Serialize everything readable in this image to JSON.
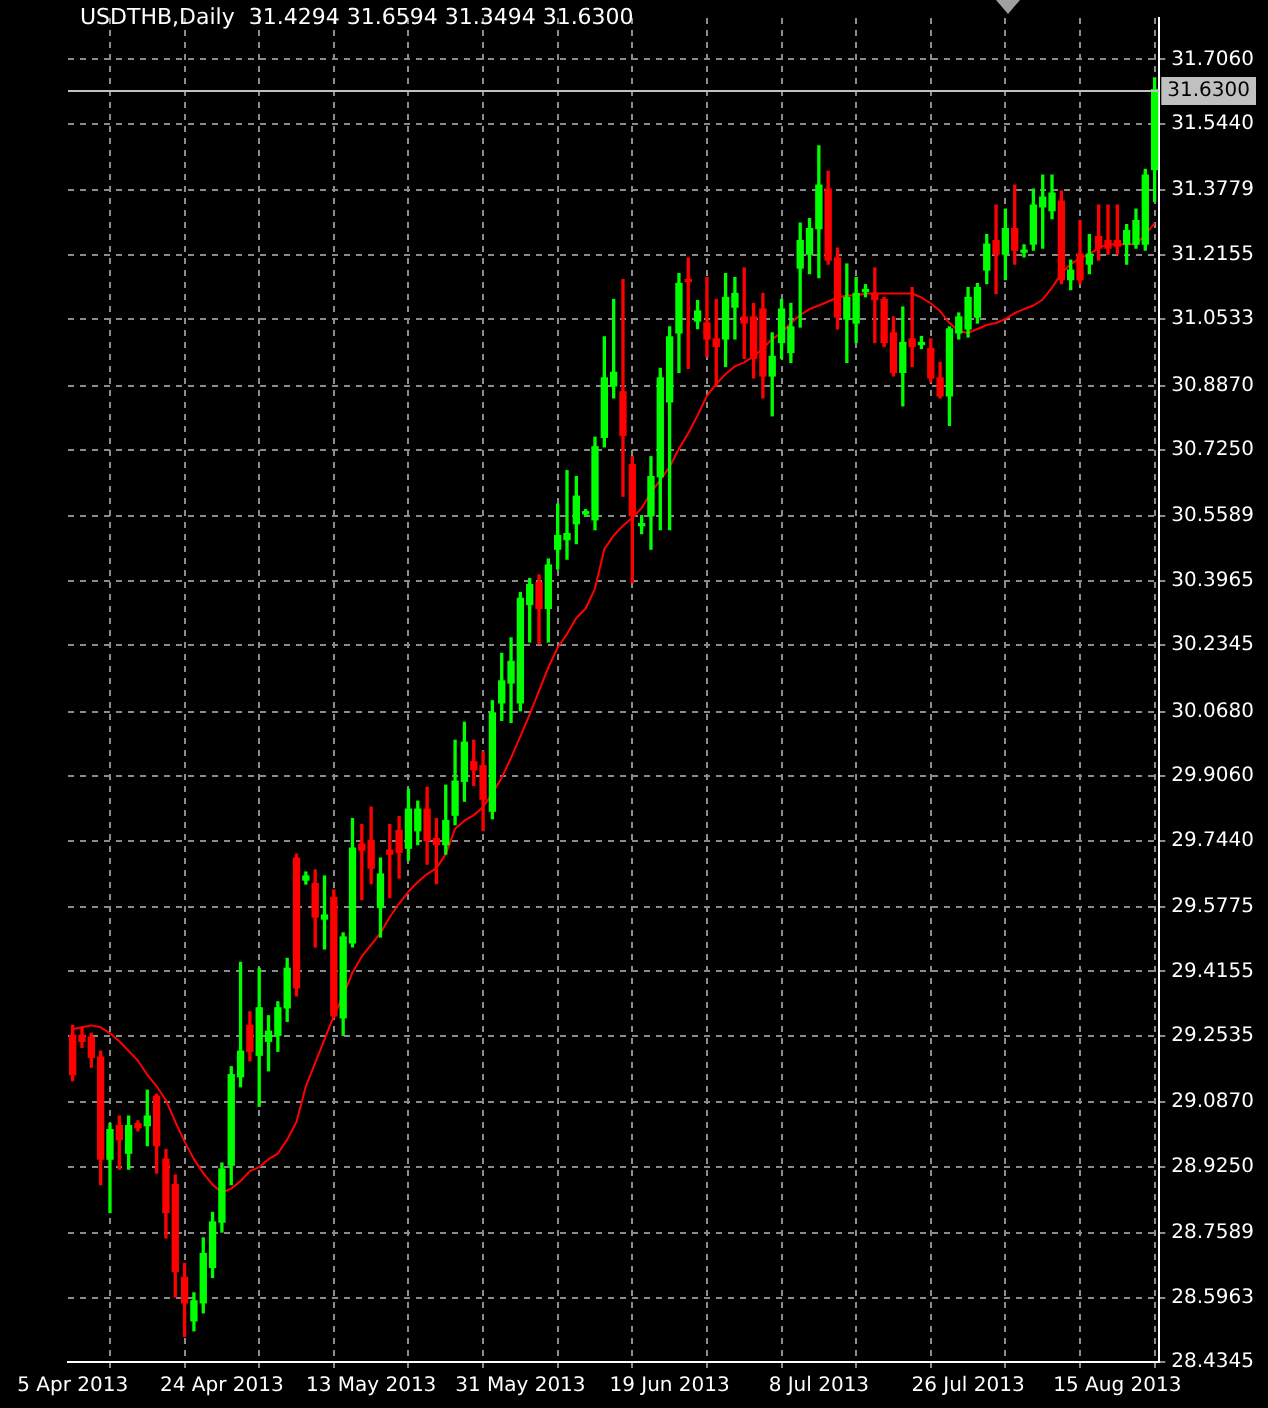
{
  "chart_data": {
    "type": "candlestick",
    "title": "USDTHB,Daily  31.4294 31.6594 31.3494 31.6300",
    "categories": [
      "5 Apr 2013",
      null,
      null,
      null,
      null,
      null,
      null,
      null,
      null,
      null,
      null,
      null,
      null,
      null,
      null,
      null,
      "24 Apr 2013",
      null,
      null,
      null,
      null,
      null,
      null,
      null,
      null,
      null,
      null,
      null,
      null,
      null,
      null,
      null,
      "13 May 2013",
      null,
      null,
      null,
      null,
      null,
      null,
      null,
      null,
      null,
      null,
      null,
      null,
      null,
      null,
      null,
      "31 May 2013",
      null,
      null,
      null,
      null,
      null,
      null,
      null,
      null,
      null,
      null,
      null,
      null,
      null,
      null,
      null,
      "19 Jun 2013",
      null,
      null,
      null,
      null,
      null,
      null,
      null,
      null,
      null,
      null,
      null,
      null,
      null,
      null,
      null,
      "8 Jul 2013",
      null,
      null,
      null,
      null,
      null,
      null,
      null,
      null,
      null,
      null,
      null,
      null,
      null,
      null,
      null,
      "26 Jul 2013",
      null,
      null,
      null,
      null,
      null,
      null,
      null,
      null,
      null,
      null,
      null,
      null,
      null,
      null,
      null,
      "15 Aug 2013",
      null,
      null,
      null,
      null
    ],
    "ohlc": [
      [
        29.255,
        29.28,
        29.141,
        29.156
      ],
      [
        29.255,
        29.275,
        29.225,
        29.24
      ],
      [
        29.25,
        29.26,
        29.175,
        29.2
      ],
      [
        29.2,
        29.215,
        28.88,
        28.944
      ],
      [
        28.944,
        29.033,
        28.81,
        29.018
      ],
      [
        29.028,
        29.052,
        28.919,
        28.993
      ],
      [
        28.959,
        29.052,
        28.919,
        29.028
      ],
      [
        29.033,
        29.04,
        29.015,
        29.023
      ],
      [
        29.028,
        29.117,
        28.978,
        29.052
      ],
      [
        29.102,
        29.107,
        28.909,
        28.978
      ],
      [
        28.944,
        28.968,
        28.746,
        28.81
      ],
      [
        28.88,
        28.904,
        28.598,
        28.662
      ],
      [
        28.647,
        28.682,
        28.499,
        28.583
      ],
      [
        28.538,
        28.608,
        28.513,
        28.588
      ],
      [
        28.583,
        28.746,
        28.558,
        28.707
      ],
      [
        28.672,
        28.81,
        28.647,
        28.786
      ],
      [
        28.786,
        28.934,
        28.761,
        28.919
      ],
      [
        28.929,
        29.176,
        28.88,
        29.156
      ],
      [
        29.151,
        29.438,
        29.126,
        29.215
      ],
      [
        29.28,
        29.314,
        29.191,
        29.215
      ],
      [
        29.205,
        29.423,
        29.077,
        29.324
      ],
      [
        29.24,
        29.304,
        29.166,
        29.265
      ],
      [
        29.255,
        29.339,
        29.215,
        29.324
      ],
      [
        29.324,
        29.448,
        29.29,
        29.423
      ],
      [
        29.7,
        29.71,
        29.354,
        29.374
      ],
      [
        29.645,
        29.665,
        29.635,
        29.655
      ],
      [
        29.636,
        29.67,
        29.477,
        29.552
      ],
      [
        29.547,
        29.655,
        29.472,
        29.557
      ],
      [
        29.601,
        29.62,
        29.299,
        29.304
      ],
      [
        29.299,
        29.512,
        29.255,
        29.502
      ],
      [
        29.487,
        29.799,
        29.477,
        29.725
      ],
      [
        29.735,
        29.784,
        29.596,
        29.72
      ],
      [
        29.744,
        29.828,
        29.636,
        29.675
      ],
      [
        29.576,
        29.7,
        29.502,
        29.66
      ],
      [
        29.72,
        29.784,
        29.601,
        29.71
      ],
      [
        29.769,
        29.804,
        29.65,
        29.715
      ],
      [
        29.725,
        29.873,
        29.695,
        29.823
      ],
      [
        29.769,
        29.843,
        29.734,
        29.823
      ],
      [
        29.823,
        29.878,
        29.685,
        29.744
      ],
      [
        29.749,
        29.799,
        29.636,
        29.734
      ],
      [
        29.734,
        29.883,
        29.71,
        29.794
      ],
      [
        29.808,
        29.996,
        29.784,
        29.893
      ],
      [
        29.893,
        30.041,
        29.843,
        29.991
      ],
      [
        29.942,
        29.996,
        29.883,
        29.922
      ],
      [
        29.932,
        29.967,
        29.769,
        29.848
      ],
      [
        29.818,
        30.095,
        29.799,
        30.065
      ],
      [
        30.09,
        30.214,
        30.046,
        30.145
      ],
      [
        30.14,
        30.253,
        30.041,
        30.194
      ],
      [
        30.09,
        30.367,
        30.07,
        30.352
      ],
      [
        30.337,
        30.402,
        30.243,
        30.387
      ],
      [
        30.392,
        30.411,
        30.238,
        30.327
      ],
      [
        30.327,
        30.451,
        30.243,
        30.436
      ],
      [
        30.476,
        30.589,
        30.426,
        30.51
      ],
      [
        30.5,
        30.673,
        30.451,
        30.515
      ],
      [
        30.54,
        30.658,
        30.49,
        30.609
      ],
      [
        30.565,
        30.575,
        30.56,
        30.57
      ],
      [
        30.55,
        30.757,
        30.525,
        30.733
      ],
      [
        30.757,
        31.009,
        30.733,
        30.906
      ],
      [
        30.886,
        31.103,
        30.856,
        30.92
      ],
      [
        30.871,
        31.153,
        30.609,
        30.762
      ],
      [
        30.688,
        30.708,
        30.392,
        30.56
      ],
      [
        30.535,
        30.56,
        30.515,
        30.54
      ],
      [
        30.56,
        30.708,
        30.476,
        30.658
      ],
      [
        30.658,
        30.93,
        30.525,
        30.906
      ],
      [
        30.846,
        31.034,
        30.525,
        31.009
      ],
      [
        31.019,
        31.168,
        30.92,
        31.143
      ],
      [
        31.153,
        31.207,
        30.93,
        31.148
      ],
      [
        31.049,
        31.1,
        31.03,
        31.074
      ],
      [
        31.044,
        31.158,
        30.96,
        31.004
      ],
      [
        31.004,
        31.103,
        30.886,
        30.985
      ],
      [
        31.004,
        31.168,
        30.935,
        31.108
      ],
      [
        31.084,
        31.158,
        31.004,
        31.118
      ],
      [
        31.059,
        31.182,
        30.955,
        31.044
      ],
      [
        31.059,
        31.093,
        30.906,
        30.955
      ],
      [
        31.079,
        31.118,
        30.856,
        30.911
      ],
      [
        30.911,
        31.019,
        30.811,
        30.96
      ],
      [
        30.995,
        31.103,
        30.955,
        31.079
      ],
      [
        30.97,
        31.093,
        30.945,
        31.034
      ],
      [
        31.182,
        31.295,
        31.034,
        31.251
      ],
      [
        31.217,
        31.306,
        31.168,
        31.281
      ],
      [
        31.281,
        31.489,
        31.158,
        31.39
      ],
      [
        31.38,
        31.425,
        31.192,
        31.202
      ],
      [
        31.207,
        31.232,
        31.029,
        31.059
      ],
      [
        31.054,
        31.192,
        30.945,
        31.108
      ],
      [
        31.044,
        31.158,
        30.995,
        31.118
      ],
      [
        31.123,
        31.14,
        31.11,
        31.128
      ],
      [
        31.118,
        31.182,
        30.995,
        31.103
      ],
      [
        31.103,
        31.108,
        30.985,
        30.995
      ],
      [
        31.019,
        31.059,
        30.911,
        30.92
      ],
      [
        30.92,
        31.084,
        30.836,
        30.995
      ],
      [
        31.004,
        31.133,
        30.935,
        30.985
      ],
      [
        30.99,
        31.01,
        30.98,
        30.995
      ],
      [
        30.98,
        31.004,
        30.896,
        30.906
      ],
      [
        30.906,
        30.945,
        30.856,
        30.861
      ],
      [
        30.861,
        31.034,
        30.787,
        31.029
      ],
      [
        31.019,
        31.069,
        31.004,
        31.059
      ],
      [
        31.029,
        31.133,
        31.009,
        31.108
      ],
      [
        31.059,
        31.143,
        31.044,
        31.133
      ],
      [
        31.177,
        31.266,
        31.143,
        31.242
      ],
      [
        31.251,
        31.34,
        31.118,
        31.217
      ],
      [
        31.217,
        31.33,
        31.153,
        31.281
      ],
      [
        31.281,
        31.39,
        31.192,
        31.227
      ],
      [
        31.222,
        31.24,
        31.21,
        31.227
      ],
      [
        31.242,
        31.38,
        31.227,
        31.34
      ],
      [
        31.336,
        31.415,
        31.232,
        31.36
      ],
      [
        31.326,
        31.415,
        31.306,
        31.37
      ],
      [
        31.35,
        31.375,
        31.143,
        31.153
      ],
      [
        31.153,
        31.202,
        31.128,
        31.177
      ],
      [
        31.217,
        31.301,
        31.143,
        31.153
      ],
      [
        31.192,
        31.266,
        31.168,
        31.217
      ],
      [
        31.261,
        31.34,
        31.202,
        31.232
      ],
      [
        31.251,
        31.34,
        31.217,
        31.232
      ],
      [
        31.251,
        31.34,
        31.217,
        31.237
      ],
      [
        31.242,
        31.291,
        31.192,
        31.276
      ],
      [
        31.242,
        31.33,
        31.232,
        31.301
      ],
      [
        31.242,
        31.43,
        31.227,
        31.415
      ],
      [
        31.4294,
        31.6594,
        31.3494,
        31.63
      ]
    ],
    "colors": [
      "#ff0000",
      "#ff0000",
      "#ff0000",
      "#ff0000",
      "#00ff00",
      "#ff0000",
      "#00ff00",
      "#ff0000",
      "#00ff00",
      "#ff0000",
      "#ff0000",
      "#ff0000",
      "#ff0000",
      "#00ff00",
      "#00ff00",
      "#00ff00",
      "#00ff00",
      "#00ff00",
      "#00ff00",
      "#ff0000",
      "#00ff00",
      "#00ff00",
      "#00ff00",
      "#00ff00",
      "#ff0000",
      "#00ff00",
      "#ff0000",
      "#00ff00",
      "#ff0000",
      "#00ff00",
      "#00ff00",
      "#ff0000",
      "#ff0000",
      "#00ff00",
      "#ff0000",
      "#ff0000",
      "#00ff00",
      "#00ff00",
      "#ff0000",
      "#ff0000",
      "#00ff00",
      "#00ff00",
      "#00ff00",
      "#ff0000",
      "#ff0000",
      "#00ff00",
      "#00ff00",
      "#00ff00",
      "#00ff00",
      "#00ff00",
      "#ff0000",
      "#00ff00",
      "#00ff00",
      "#00ff00",
      "#00ff00",
      "#00ff00",
      "#00ff00",
      "#00ff00",
      "#00ff00",
      "#ff0000",
      "#ff0000",
      "#00ff00",
      "#00ff00",
      "#00ff00",
      "#00ff00",
      "#00ff00",
      "#ff0000",
      "#00ff00",
      "#ff0000",
      "#ff0000",
      "#00ff00",
      "#00ff00",
      "#ff0000",
      "#ff0000",
      "#ff0000",
      "#00ff00",
      "#00ff00",
      "#00ff00",
      "#00ff00",
      "#00ff00",
      "#00ff00",
      "#ff0000",
      "#ff0000",
      "#00ff00",
      "#00ff00",
      "#00ff00",
      "#ff0000",
      "#ff0000",
      "#ff0000",
      "#00ff00",
      "#ff0000",
      "#00ff00",
      "#ff0000",
      "#ff0000",
      "#00ff00",
      "#00ff00",
      "#00ff00",
      "#00ff00",
      "#00ff00",
      "#ff0000",
      "#00ff00",
      "#ff0000",
      "#00ff00",
      "#00ff00",
      "#00ff00",
      "#00ff00",
      "#ff0000",
      "#00ff00",
      "#ff0000",
      "#00ff00",
      "#ff0000",
      "#ff0000",
      "#ff0000",
      "#00ff00",
      "#00ff00",
      "#00ff00",
      "#00ff00"
    ],
    "series": [
      {
        "type": "line",
        "color": "#ff0000",
        "values": [
          29.27,
          29.275,
          29.28,
          29.275,
          29.26,
          29.24,
          29.216,
          29.191,
          29.156,
          29.127,
          29.092,
          29.038,
          28.988,
          28.944,
          28.909,
          28.88,
          28.86,
          28.87,
          28.889,
          28.914,
          28.924,
          28.944,
          28.958,
          28.993,
          29.038,
          29.127,
          29.186,
          29.245,
          29.304,
          29.354,
          29.413,
          29.453,
          29.482,
          29.512,
          29.552,
          29.586,
          29.616,
          29.64,
          29.66,
          29.675,
          29.71,
          29.774,
          29.794,
          29.808,
          29.828,
          29.863,
          29.902,
          29.952,
          30.006,
          30.061,
          30.12,
          30.179,
          30.229,
          30.263,
          30.303,
          30.327,
          30.377,
          30.476,
          30.51,
          30.535,
          30.555,
          30.579,
          30.619,
          30.649,
          30.683,
          30.728,
          30.767,
          30.812,
          30.861,
          30.891,
          30.916,
          30.935,
          30.945,
          30.96,
          30.98,
          31.004,
          31.019,
          31.044,
          31.064,
          31.079,
          31.088,
          31.098,
          31.108,
          31.113,
          31.113,
          31.118,
          31.118,
          31.118,
          31.118,
          31.118,
          31.118,
          31.108,
          31.093,
          31.074,
          31.044,
          31.024,
          31.019,
          31.029,
          31.039,
          31.044,
          31.054,
          31.069,
          31.079,
          31.088,
          31.103,
          31.133,
          31.168,
          31.192,
          31.207,
          31.217,
          31.232,
          31.242,
          31.242,
          31.242,
          31.242,
          31.266,
          31.295
        ]
      }
    ],
    "ylim": [
      28.4345,
      31.81
    ],
    "yticks": [
      {
        "value": 28.4345,
        "label": "28.4345"
      },
      {
        "value": 28.5963,
        "label": "28.5963"
      },
      {
        "value": 28.7589,
        "label": "28.7589"
      },
      {
        "value": 28.925,
        "label": "28.9250"
      },
      {
        "value": 29.087,
        "label": "29.0870"
      },
      {
        "value": 29.2535,
        "label": "29.2535"
      },
      {
        "value": 29.4155,
        "label": "29.4155"
      },
      {
        "value": 29.5775,
        "label": "29.5775"
      },
      {
        "value": 29.744,
        "label": "29.7440"
      },
      {
        "value": 29.906,
        "label": "29.9060"
      },
      {
        "value": 30.068,
        "label": "30.0680"
      },
      {
        "value": 30.2345,
        "label": "30.2345"
      },
      {
        "value": 30.3965,
        "label": "30.3965"
      },
      {
        "value": 30.5589,
        "label": "30.5589"
      },
      {
        "value": 30.725,
        "label": "30.7250"
      },
      {
        "value": 30.887,
        "label": "30.8870"
      },
      {
        "value": 31.0533,
        "label": "31.0533"
      },
      {
        "value": 31.2155,
        "label": "31.2155"
      },
      {
        "value": 31.3779,
        "label": "31.3779"
      },
      {
        "value": 31.544,
        "label": "31.5440"
      },
      {
        "value": 31.706,
        "label": "31.7060"
      }
    ],
    "grid": true,
    "ref_lines": [
      {
        "axis": "y",
        "value": 31.63,
        "label": "31.6300",
        "color": "#c0c0c0"
      }
    ]
  }
}
